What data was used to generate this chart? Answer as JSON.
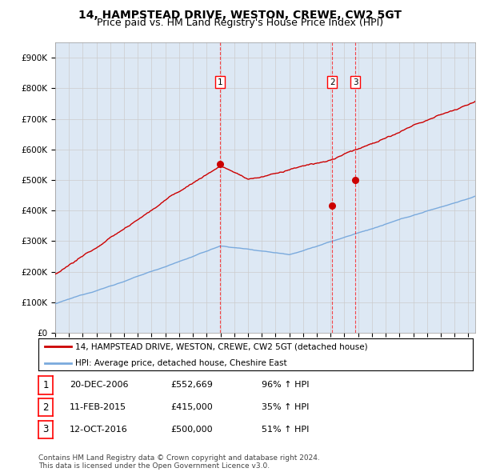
{
  "title": "14, HAMPSTEAD DRIVE, WESTON, CREWE, CW2 5GT",
  "subtitle": "Price paid vs. HM Land Registry's House Price Index (HPI)",
  "ylabel_ticks": [
    "£0",
    "£100K",
    "£200K",
    "£300K",
    "£400K",
    "£500K",
    "£600K",
    "£700K",
    "£800K",
    "£900K"
  ],
  "ytick_values": [
    0,
    100000,
    200000,
    300000,
    400000,
    500000,
    600000,
    700000,
    800000,
    900000
  ],
  "ylim": [
    0,
    950000
  ],
  "xlim_start": 1995.0,
  "xlim_end": 2025.5,
  "sale_dates": [
    2006.97,
    2015.12,
    2016.79
  ],
  "sale_prices": [
    552669,
    415000,
    500000
  ],
  "sale_labels": [
    "1",
    "2",
    "3"
  ],
  "sale_color": "#cc0000",
  "hpi_color": "#7aaadd",
  "grid_color": "#cccccc",
  "background_color": "#dde8f4",
  "legend_items": [
    "14, HAMPSTEAD DRIVE, WESTON, CREWE, CW2 5GT (detached house)",
    "HPI: Average price, detached house, Cheshire East"
  ],
  "table_rows": [
    [
      "1",
      "20-DEC-2006",
      "£552,669",
      "96% ↑ HPI"
    ],
    [
      "2",
      "11-FEB-2015",
      "£415,000",
      "35% ↑ HPI"
    ],
    [
      "3",
      "12-OCT-2016",
      "£500,000",
      "51% ↑ HPI"
    ]
  ],
  "footer": "Contains HM Land Registry data © Crown copyright and database right 2024.\nThis data is licensed under the Open Government Licence v3.0.",
  "title_fontsize": 10,
  "subtitle_fontsize": 9
}
